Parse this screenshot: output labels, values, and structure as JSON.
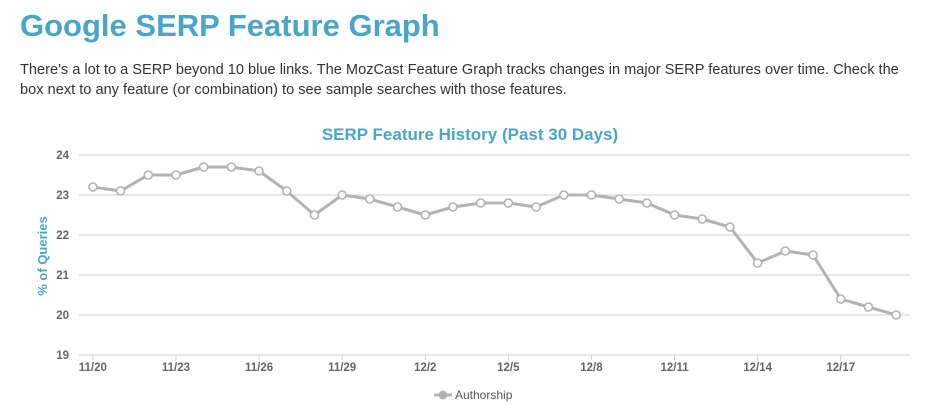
{
  "page": {
    "title": "Google SERP Feature Graph",
    "intro": "There's a lot to a SERP beyond 10 blue links. The MozCast Feature Graph tracks changes in major SERP features over time. Check the box next to any feature (or combination) to see sample searches with those features."
  },
  "colors": {
    "accent": "#4aa6c9",
    "series": "#b3b3b3",
    "grid": "#d0d0d0",
    "axis_text": "#666666"
  },
  "chart_data": {
    "type": "line",
    "title": "SERP Feature History (Past 30 Days)",
    "ylabel": "% of Queries",
    "xlabel": "",
    "ylim": [
      19,
      24
    ],
    "yticks": [
      19,
      20,
      21,
      22,
      23,
      24
    ],
    "grid": true,
    "legend": "bottom-center",
    "x": [
      "11/20",
      "11/21",
      "11/22",
      "11/23",
      "11/24",
      "11/25",
      "11/26",
      "11/27",
      "11/28",
      "11/29",
      "11/30",
      "12/1",
      "12/2",
      "12/3",
      "12/4",
      "12/5",
      "12/6",
      "12/7",
      "12/8",
      "12/9",
      "12/10",
      "12/11",
      "12/12",
      "12/13",
      "12/14",
      "12/15",
      "12/16",
      "12/17",
      "12/18",
      "12/19"
    ],
    "xtick_labels": [
      "11/20",
      "11/23",
      "11/26",
      "11/29",
      "12/2",
      "12/5",
      "12/8",
      "12/11",
      "12/14",
      "12/17"
    ],
    "series": [
      {
        "name": "Authorship",
        "values": [
          23.2,
          23.1,
          23.5,
          23.5,
          23.7,
          23.7,
          23.6,
          23.1,
          22.5,
          23.0,
          22.9,
          22.7,
          22.5,
          22.7,
          22.8,
          22.8,
          22.7,
          23.0,
          23.0,
          22.9,
          22.8,
          22.5,
          22.4,
          22.2,
          21.3,
          21.6,
          21.5,
          20.4,
          20.2,
          20.0
        ]
      }
    ]
  }
}
